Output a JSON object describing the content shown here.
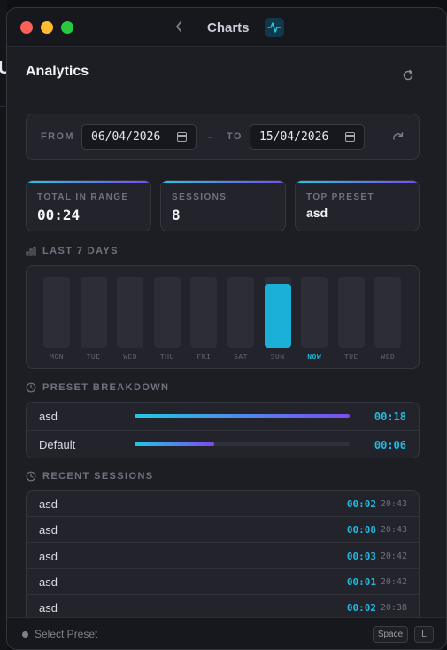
{
  "window": {
    "title": "Charts"
  },
  "page": {
    "title": "Analytics"
  },
  "range": {
    "from_label": "FROM",
    "from_value": "06/04/2026",
    "dash": "-",
    "to_label": "TO",
    "to_value": "15/04/2026"
  },
  "stats": [
    {
      "label": "TOTAL IN RANGE",
      "value": "00:24"
    },
    {
      "label": "SESSIONS",
      "value": "8"
    },
    {
      "label": "TOP PRESET",
      "value": "asd"
    }
  ],
  "sections": {
    "last7": "LAST 7 DAYS",
    "preset": "PRESET BREAKDOWN",
    "recent": "RECENT SESSIONS"
  },
  "chart_data": {
    "type": "bar",
    "categories": [
      "MON",
      "TUE",
      "WED",
      "THU",
      "FRI",
      "SAT",
      "SUN",
      "NOW",
      "TUE",
      "WED"
    ],
    "values": [
      0,
      0,
      0,
      0,
      0,
      0,
      0.9,
      0,
      0,
      0
    ],
    "highlight": "NOW",
    "colors": {
      "fill": "#1ab0d8",
      "track": "#2c2d35"
    }
  },
  "presets": [
    {
      "name": "asd",
      "time": "00:18",
      "fraction": 1.0
    },
    {
      "name": "Default",
      "time": "00:06",
      "fraction": 0.37
    }
  ],
  "recent": [
    {
      "name": "asd",
      "duration": "00:02",
      "clock": "20:43"
    },
    {
      "name": "asd",
      "duration": "00:08",
      "clock": "20:43"
    },
    {
      "name": "asd",
      "duration": "00:03",
      "clock": "20:42"
    },
    {
      "name": "asd",
      "duration": "00:01",
      "clock": "20:42"
    },
    {
      "name": "asd",
      "duration": "00:02",
      "clock": "20:38"
    }
  ],
  "footer": {
    "select_preset": "Select Preset",
    "key_space": "Space",
    "key_l": "L"
  },
  "background": {
    "letter": "U"
  },
  "icons": {
    "back": "chevron-left-icon",
    "pulse": "activity-icon",
    "refresh": "refresh-icon",
    "reset": "redo-icon",
    "chart": "bar-chart-icon",
    "clock": "clock-icon",
    "calendar": "calendar-icon"
  },
  "colors": {
    "accent": "#22b9e0",
    "gradient_start": "#22c8e3",
    "gradient_end": "#7b4bf2"
  }
}
